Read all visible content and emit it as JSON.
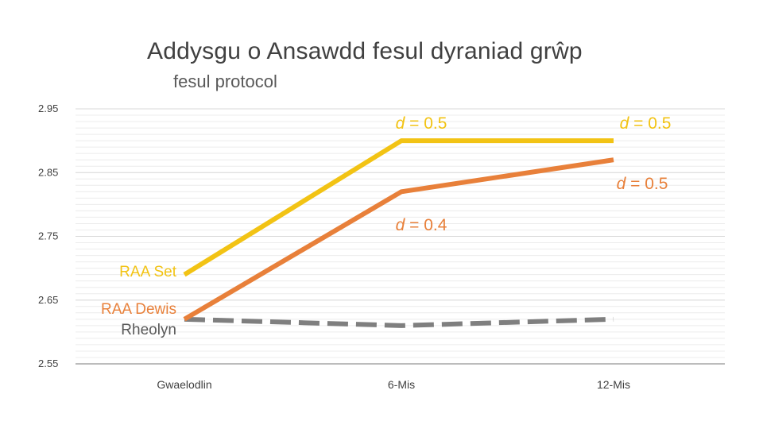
{
  "chart_data": {
    "type": "line",
    "title": "Addysgu o Ansawdd fesul dyraniad grŵp",
    "subtitle": "fesul protocol",
    "categories": [
      "Gwaelodlin",
      "6-Mis",
      "12-Mis"
    ],
    "ylim": [
      2.55,
      2.95
    ],
    "yticks": [
      "2.95",
      "2.85",
      "2.75",
      "2.65",
      "2.55"
    ],
    "grid": true,
    "series": [
      {
        "name": "RAA Set",
        "values": [
          2.69,
          2.9,
          2.9
        ],
        "color": "#F2C314",
        "dash": false
      },
      {
        "name": "RAA Dewis",
        "values": [
          2.62,
          2.82,
          2.87
        ],
        "color": "#E8803A",
        "dash": false
      },
      {
        "name": "Rheolyn",
        "values": [
          2.62,
          2.61,
          2.62
        ],
        "color": "#7F7F7F",
        "dash": true
      }
    ],
    "annotations": [
      {
        "text": "d = 0.5",
        "series": "RAA Set",
        "category": "6-Mis"
      },
      {
        "text": "d = 0.5",
        "series": "RAA Set",
        "category": "12-Mis"
      },
      {
        "text": "d = 0.4",
        "series": "RAA Dewis",
        "category": "6-Mis"
      },
      {
        "text": "d = 0.5",
        "series": "RAA Dewis",
        "category": "12-Mis"
      }
    ]
  }
}
